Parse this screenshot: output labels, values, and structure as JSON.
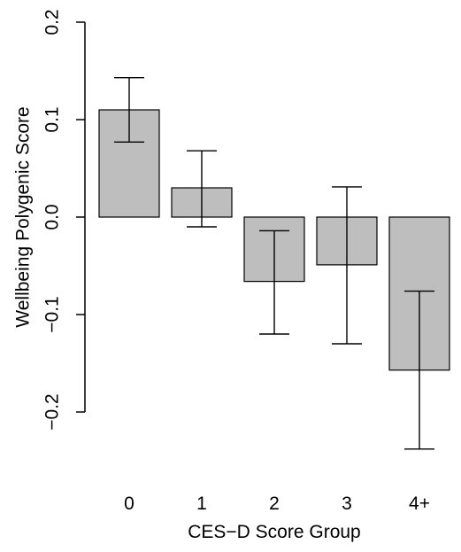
{
  "chart_data": {
    "type": "bar",
    "xlabel": "CES−D Score Group",
    "ylabel": "Wellbeing Polygenic Score",
    "categories": [
      "0",
      "1",
      "2",
      "3",
      "4+"
    ],
    "values": [
      0.11,
      0.03,
      -0.066,
      -0.049,
      -0.157
    ],
    "error_bars": [
      {
        "low": 0.077,
        "high": 0.143
      },
      {
        "low": -0.01,
        "high": 0.068
      },
      {
        "low": -0.12,
        "high": -0.014
      },
      {
        "low": -0.13,
        "high": 0.031
      },
      {
        "low": -0.238,
        "high": -0.076
      }
    ],
    "ylim": [
      -0.2,
      0.2
    ],
    "yticks": [
      -0.2,
      -0.1,
      0.0,
      0.1,
      0.2
    ],
    "ytick_labels": [
      "−0.2",
      "−0.1",
      "0.0",
      "0.1",
      "0.2"
    ],
    "bar_color": "#bebebe",
    "grid": false
  }
}
